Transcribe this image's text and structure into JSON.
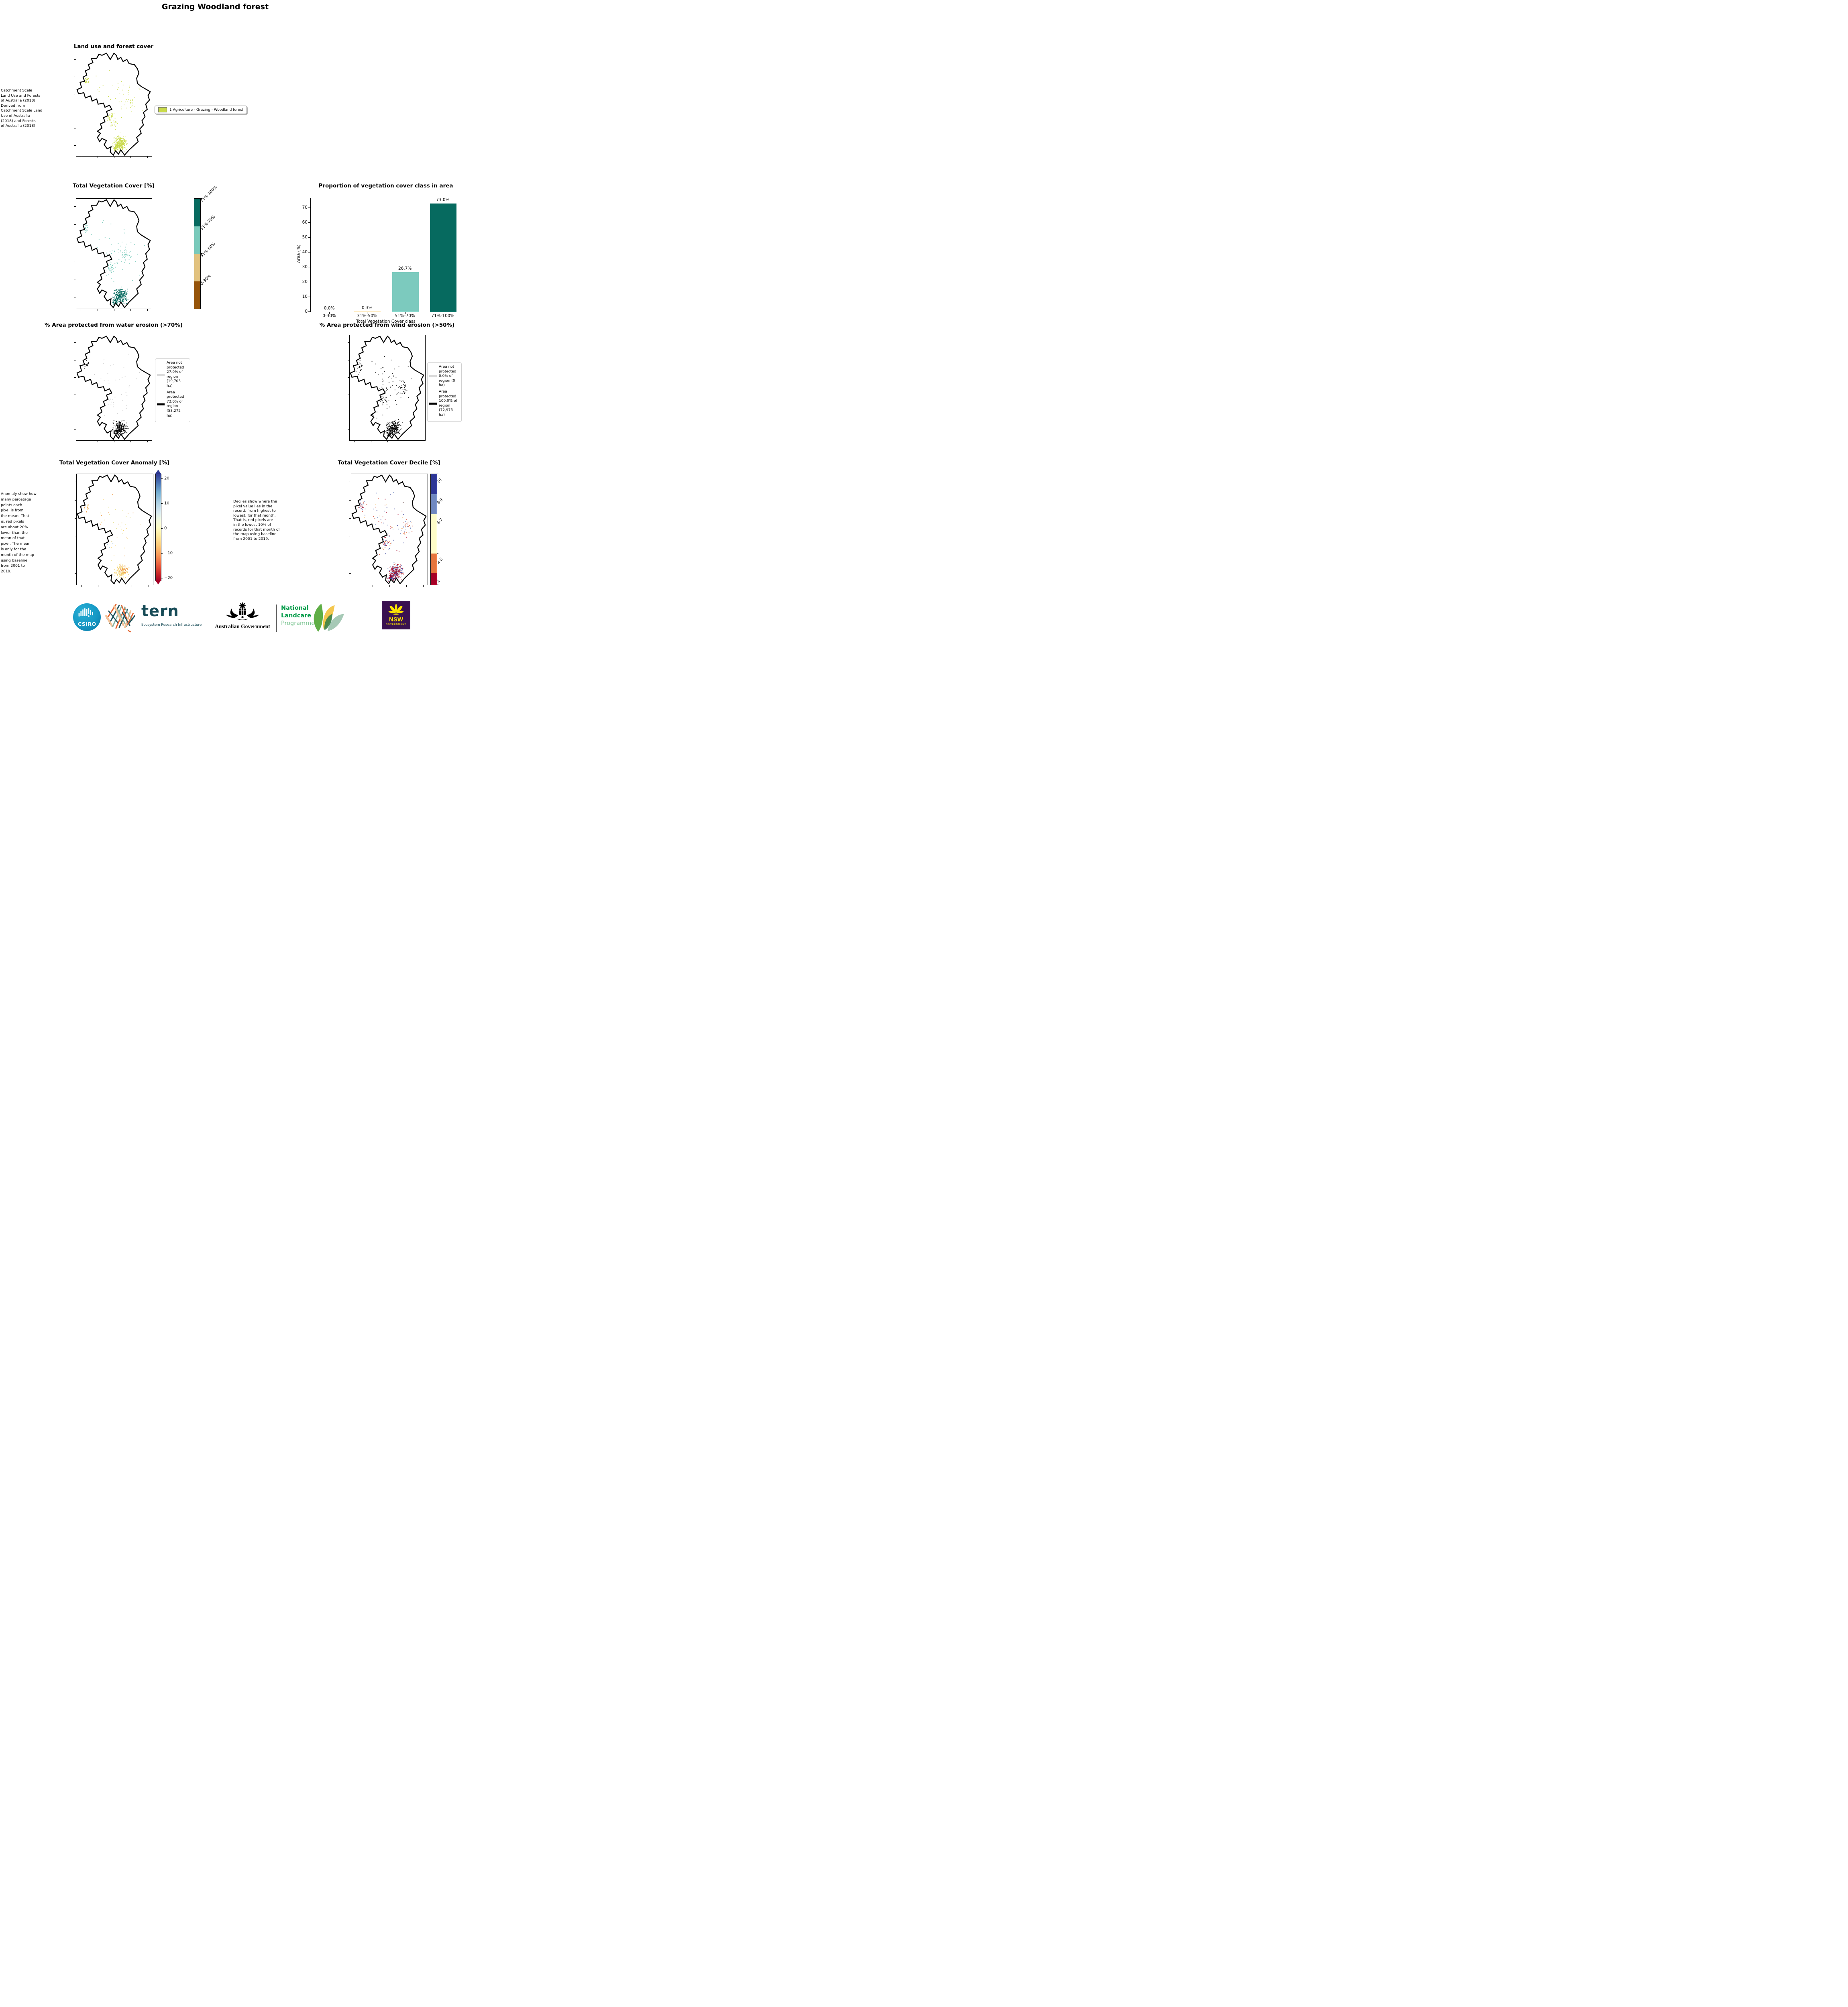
{
  "page": {
    "title": "Grazing Woodland forest"
  },
  "land_use": {
    "title": "Land use and forest cover",
    "side_text": " Catchment Scale\nLand Use and Forests\nof Australia (2018)\nDerived from\nCatchment Scale Land\nUse of Australia\n(2018) and Forests\nof Australia (2018)",
    "legend_label": "1 Agriculture - Grazing - Woodland forest",
    "legend_color": "#c9da49"
  },
  "tvc": {
    "title": "Total Vegetation Cover [%]",
    "colorbar": {
      "labels": [
        "71%-100%",
        "51%-70%",
        "31%-50%",
        "0-30%"
      ],
      "colors": [
        "#066a5f",
        "#79cabb",
        "#e2c27e",
        "#965409"
      ]
    }
  },
  "chart_data": {
    "type": "bar",
    "title": "Proportion of vegetation cover class in area",
    "categories": [
      "0-30%",
      "31%-50%",
      "51%-70%",
      "71%-100%"
    ],
    "values": [
      0.0,
      0.3,
      26.7,
      73.0
    ],
    "value_labels": [
      "0.0%",
      "0.3%",
      "26.7%",
      "73.0%"
    ],
    "bar_colors": [
      "#e2c27e",
      "#e2c27e",
      "#7ccabe",
      "#066a5f"
    ],
    "xlabel": "Total Vegetation Cover class",
    "ylabel": "Area (%)",
    "ylim": [
      0,
      76.5
    ],
    "yticks": [
      0,
      10,
      20,
      30,
      40,
      50,
      60,
      70
    ],
    "grid": false,
    "legend_position": "none"
  },
  "water_erosion": {
    "title": "% Area protected from water erosion (>70%)",
    "legend": {
      "not_protected": {
        "label": "Area not\nprotected\n27.0% of\nregion\n(19,703\nha)",
        "color": "#d9d9d9"
      },
      "protected": {
        "label": "Area\nprotected\n73.0% of\nregion\n(53,272\nha)",
        "color": "#000000"
      }
    }
  },
  "wind_erosion": {
    "title": "% Area protected from wind erosion (>50%)",
    "legend": {
      "not_protected": {
        "label": "Area not\nprotected\n0.0% of\nregion (0\nha)",
        "color": "#d9d9d9"
      },
      "protected": {
        "label": "Area\nprotected\n100.0% of\nregion\n(72,975\nha)",
        "color": "#000000"
      }
    }
  },
  "anomaly": {
    "title": "Total Vegetation Cover Anomaly [%]",
    "side_text": "Anomaly show how\nmany percetage\npoints each\npixel is from\nthe mean. That\nis, red pixels\nare about 20%\nlower than the\nmean of that\npixel. The mean\nis only for the\nmonth of the map\nusing baseline\nfrom 2001 to\n2019.",
    "colorbar_ticks": [
      "20",
      "10",
      "0",
      "−10",
      "−20"
    ]
  },
  "decile": {
    "title": "Total Vegetation Cover Decile [%]",
    "side_text": "Deciles show where the\npixel value lies in the\nrecord, from highest to\nlowest, for that month.\nThat is, red pixels are\nin the lowest 10% of\nrecords for that month of\nthe map using baseline\nfrom 2001 to 2019.",
    "colorbar": {
      "labels": [
        "10",
        "8-9",
        "4-7",
        "2-3",
        "1"
      ],
      "colors": [
        "#2d3695",
        "#7088c0",
        "#fdfcc8",
        "#e5753e",
        "#a50026"
      ]
    }
  },
  "footer": {
    "csiro": "CSIRO",
    "tern": "tern",
    "tern_tagline": "Ecosystem Research Infrastructure",
    "aus_gov": "Australian Government",
    "nlp_line1": "National",
    "nlp_line2": "Landcare",
    "nlp_line3": "Programme",
    "nsw": "NSW",
    "nsw_sub": "GOVERNMENT"
  }
}
